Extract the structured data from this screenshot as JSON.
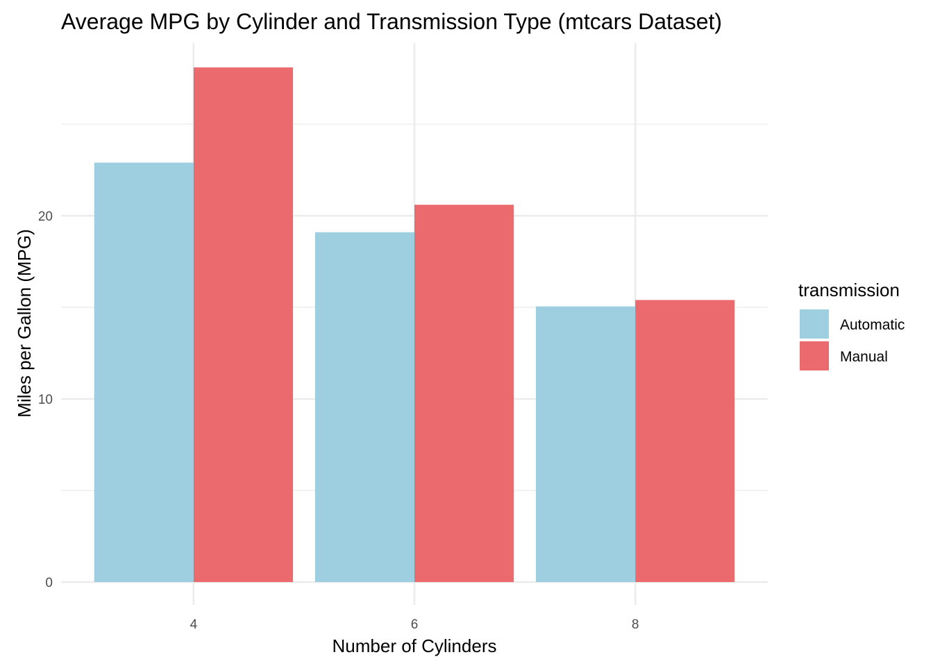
{
  "chart_data": {
    "type": "bar",
    "title": "Average MPG by Cylinder and Transmission Type (mtcars Dataset)",
    "xlabel": "Number of Cylinders",
    "ylabel": "Miles per Gallon (MPG)",
    "categories": [
      "4",
      "6",
      "8"
    ],
    "series": [
      {
        "name": "Automatic",
        "color": "#9ECFE0",
        "values": [
          22.9,
          19.1,
          15.05
        ]
      },
      {
        "name": "Manual",
        "color": "#EA6A6D",
        "values": [
          28.1,
          20.6,
          15.4
        ]
      }
    ],
    "ylim": [
      0,
      29.5
    ],
    "y_ticks": [
      0,
      10,
      20
    ],
    "y_minor_ticks": [
      5,
      15,
      25
    ],
    "grid": true,
    "legend": {
      "title": "transmission",
      "position": "right"
    }
  }
}
